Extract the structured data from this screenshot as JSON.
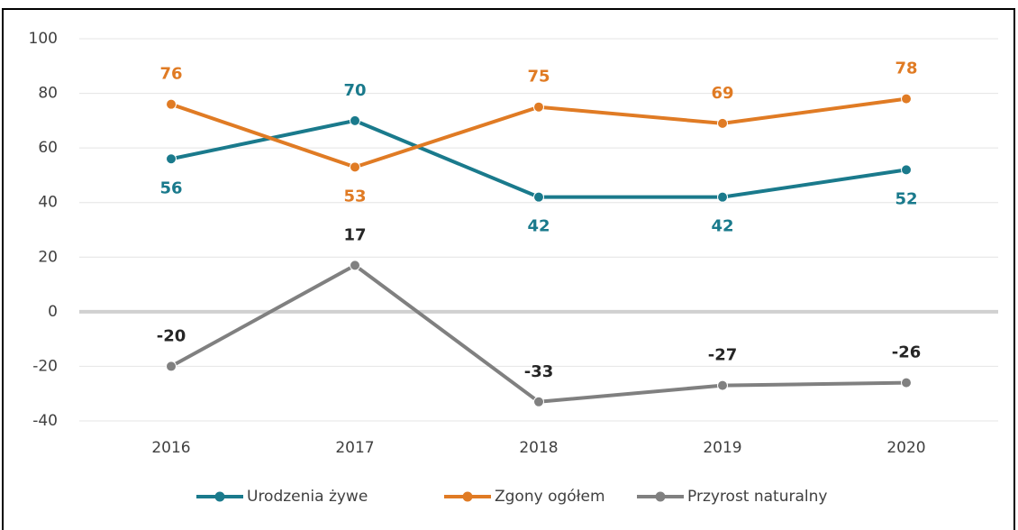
{
  "chart_data": {
    "type": "line",
    "categories": [
      "2016",
      "2017",
      "2018",
      "2019",
      "2020"
    ],
    "series": [
      {
        "name": "Urodzenia żywe",
        "color": "#1a7a8c",
        "values": [
          56,
          70,
          42,
          42,
          52
        ]
      },
      {
        "name": "Zgony ogółem",
        "color": "#e07b24",
        "values": [
          76,
          53,
          75,
          69,
          78
        ]
      },
      {
        "name": "Przyrost naturalny",
        "color": "#808080",
        "values": [
          -20,
          17,
          -33,
          -27,
          -26
        ]
      }
    ],
    "ylim": [
      -40,
      100
    ],
    "yticks": [
      -40,
      -20,
      0,
      20,
      40,
      60,
      80,
      100
    ],
    "grid": true,
    "legend": "bottom"
  }
}
